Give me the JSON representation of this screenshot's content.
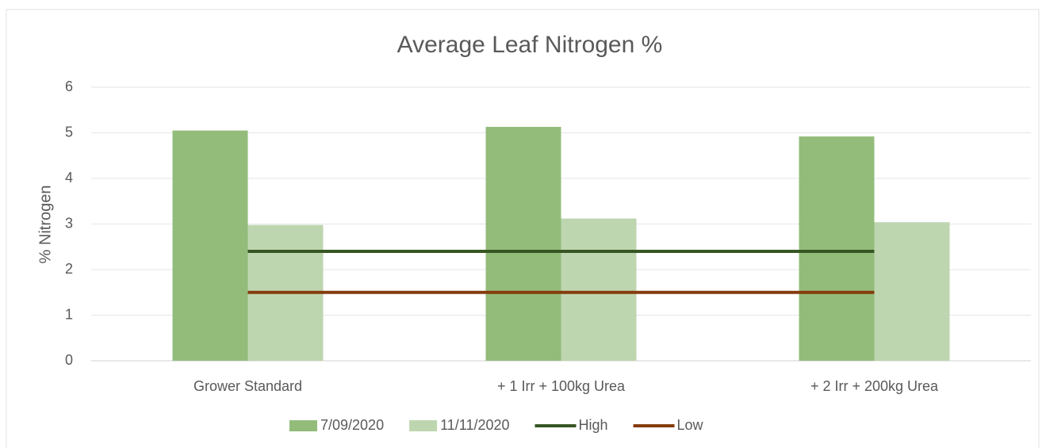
{
  "chart_data": {
    "type": "bar",
    "title": "Average Leaf Nitrogen %",
    "y_label": "% Nitrogen",
    "categories": [
      "Grower Standard",
      "+ 1 Irr + 100kg Urea",
      "+ 2 Irr + 200kg Urea"
    ],
    "series": [
      {
        "name": "7/09/2020",
        "type": "bar",
        "color": "#93bc7b",
        "values": [
          5.05,
          5.13,
          4.92
        ]
      },
      {
        "name": "11/11/2020",
        "type": "bar",
        "color": "#bed6b0",
        "values": [
          2.98,
          3.12,
          3.04
        ]
      },
      {
        "name": "High",
        "type": "line",
        "color": "#375623",
        "values": [
          2.4,
          2.4,
          2.4
        ]
      },
      {
        "name": "Low",
        "type": "line",
        "color": "#843c0c",
        "values": [
          1.5,
          1.5,
          1.5
        ]
      }
    ],
    "ylim": [
      0,
      6
    ],
    "yticks": [
      0,
      1,
      2,
      3,
      4,
      5,
      6
    ],
    "grid": true,
    "legend": "bottom"
  }
}
